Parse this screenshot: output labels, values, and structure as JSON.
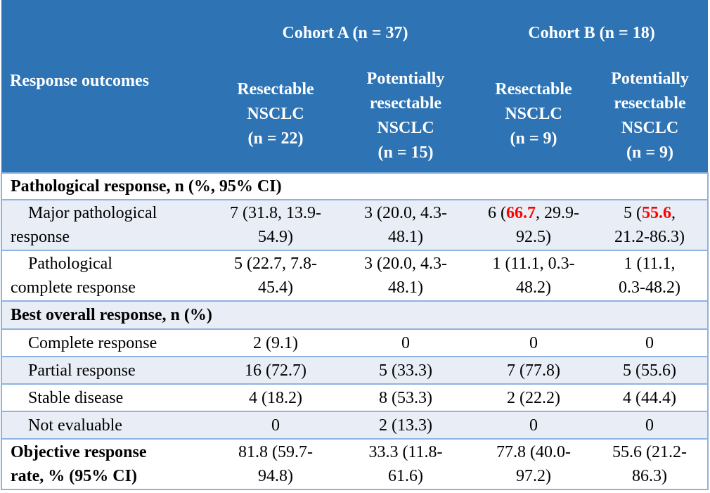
{
  "header": {
    "row_label": "Response outcomes",
    "cohorts": [
      "Cohort A (n = 37)",
      "Cohort B (n = 18)"
    ],
    "subgroups": [
      "Resectable\nNSCLC\n(n = 22)",
      "Potentially\nresectable\nNSCLC\n(n = 15)",
      "Resectable\nNSCLC\n(n = 9)",
      "Potentially\nresectable\nNSCLC\n(n = 9)"
    ]
  },
  "sections": {
    "pathological": "Pathological response, n (%, 95% CI)",
    "best_overall": "Best overall response, n (%)"
  },
  "rows": {
    "mpr": {
      "label": "Major pathological\nresponse",
      "cells": [
        "7 (31.8, 13.9-\n54.9)",
        "3 (20.0, 4.3-\n48.1)"
      ],
      "c3": {
        "pre": "6 (",
        "hl": "66.7",
        "post": ", 29.9-\n92.5)"
      },
      "c4": {
        "pre": "5 (",
        "hl": "55.6",
        "post": ",\n21.2-86.3)"
      }
    },
    "pcr": {
      "label": "Pathological\ncomplete response",
      "cells": [
        "5 (22.7, 7.8-\n45.4)",
        "3 (20.0, 4.3-\n48.1)",
        "1 (11.1, 0.3-\n48.2)",
        "1 (11.1,\n0.3-48.2)"
      ]
    },
    "cr": {
      "label": "Complete response",
      "cells": [
        "2 (9.1)",
        "0",
        "0",
        "0"
      ]
    },
    "pr": {
      "label": "Partial response",
      "cells": [
        "16 (72.7)",
        "5 (33.3)",
        "7 (77.8)",
        "5 (55.6)"
      ]
    },
    "sd": {
      "label": "Stable disease",
      "cells": [
        "4 (18.2)",
        "8 (53.3)",
        "2 (22.2)",
        "4 (44.4)"
      ]
    },
    "ne": {
      "label": "Not evaluable",
      "cells": [
        "0",
        "2 (13.3)",
        "0",
        "0"
      ]
    },
    "orr": {
      "label": "Objective response\nrate, % (95% CI)",
      "cells": [
        "81.8 (59.7-\n94.8)",
        "33.3 (11.8-\n61.6)",
        "77.8 (40.0-\n97.2)",
        "55.6 (21.2-\n86.3)"
      ]
    }
  },
  "colors": {
    "header_bg": "#2e74b5",
    "alt_row_bg": "#e9edf5",
    "border": "#8db3e2",
    "highlight": "#ff0000"
  }
}
